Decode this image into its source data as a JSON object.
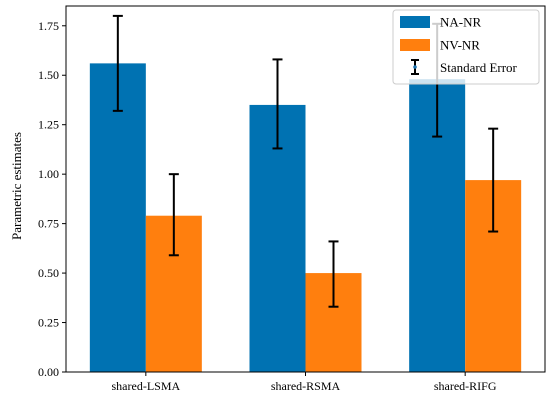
{
  "chart_data": {
    "type": "bar",
    "categories": [
      "shared-LSMA",
      "shared-RSMA",
      "shared-RIFG"
    ],
    "series": [
      {
        "name": "NA-NR",
        "color": "#0072b2",
        "values": [
          1.56,
          1.35,
          1.48
        ],
        "errors": [
          [
            1.32,
            1.8
          ],
          [
            1.13,
            1.58
          ],
          [
            1.19,
            1.76
          ]
        ]
      },
      {
        "name": "NV-NR",
        "color": "#ff7f0e",
        "values": [
          0.79,
          0.5,
          0.97
        ],
        "errors": [
          [
            0.59,
            1.0
          ],
          [
            0.33,
            0.66
          ],
          [
            0.71,
            1.23
          ]
        ]
      }
    ],
    "error_label": "Standard Error",
    "xlabel": "",
    "ylabel": "Parametric estimates",
    "ylim": [
      0,
      1.85
    ],
    "yticks": [
      "0.00",
      "0.25",
      "0.50",
      "0.75",
      "1.00",
      "1.25",
      "1.50",
      "1.75"
    ],
    "grid": false,
    "legend_position": "top-right"
  }
}
